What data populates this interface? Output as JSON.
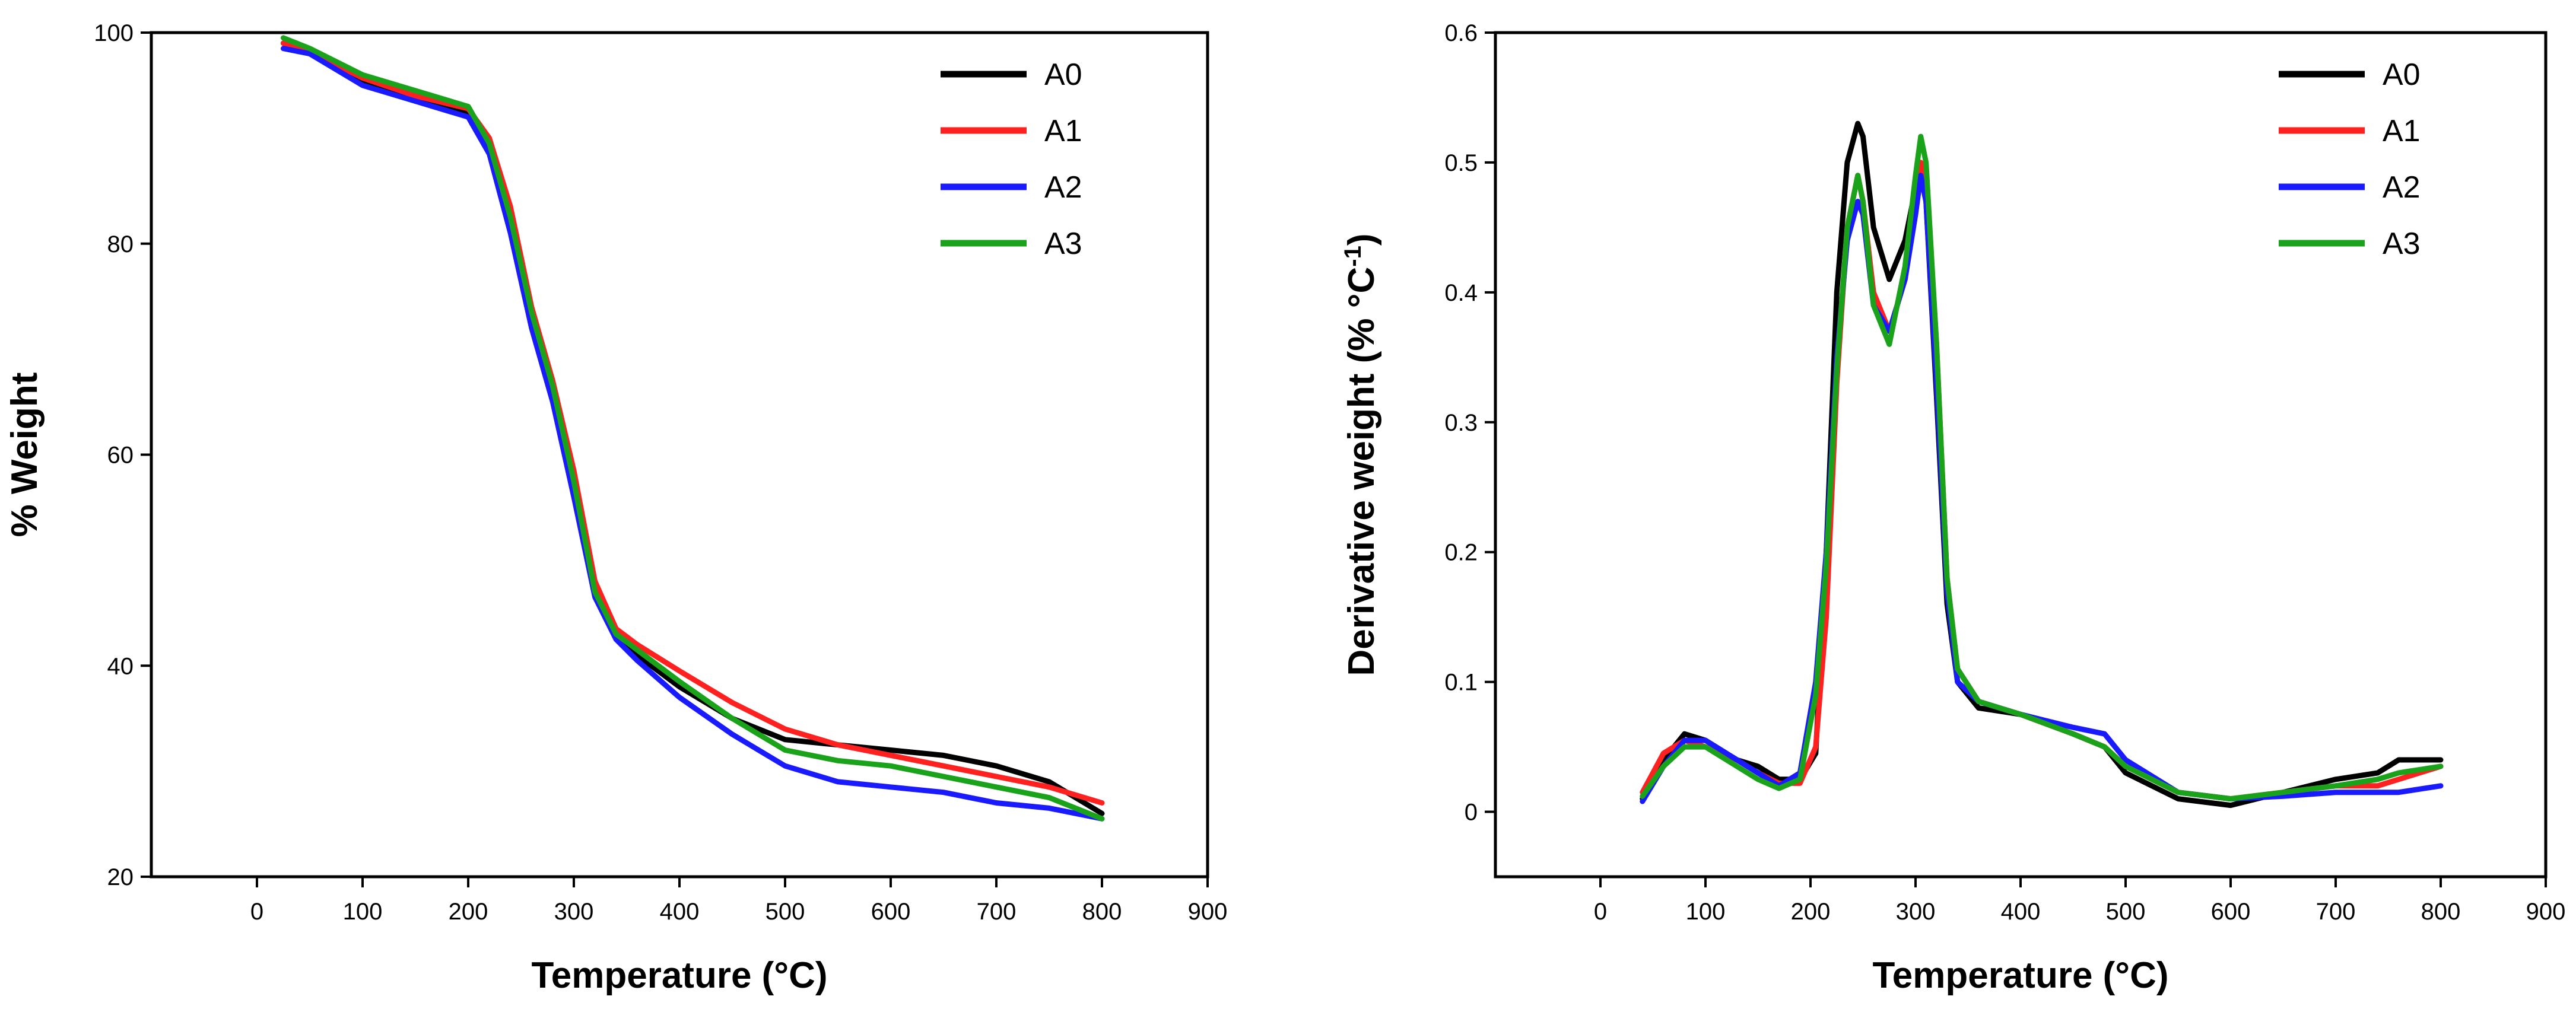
{
  "chart_data": [
    {
      "type": "line",
      "xlabel": "Temperature (°C)",
      "ylabel": "% Weight",
      "xlim": [
        -100,
        900
      ],
      "ylim": [
        20,
        100
      ],
      "xticks": [
        0,
        100,
        200,
        300,
        400,
        500,
        600,
        700,
        800,
        900
      ],
      "yticks": [
        20,
        40,
        60,
        80,
        100
      ],
      "legend": "top-right",
      "series": [
        {
          "name": "A0",
          "color": "#000000",
          "x": [
            25,
            50,
            100,
            150,
            200,
            220,
            240,
            260,
            280,
            300,
            320,
            340,
            360,
            400,
            450,
            500,
            550,
            600,
            650,
            700,
            750,
            800
          ],
          "y": [
            99,
            98,
            95.5,
            94,
            92.5,
            89,
            82,
            73,
            66,
            57,
            47,
            43,
            41,
            38,
            35,
            33,
            32.5,
            32,
            31.5,
            30.5,
            29,
            26
          ]
        },
        {
          "name": "A1",
          "color": "#ff2020",
          "x": [
            25,
            50,
            100,
            150,
            200,
            220,
            240,
            260,
            280,
            300,
            320,
            340,
            360,
            400,
            450,
            500,
            550,
            600,
            650,
            700,
            750,
            800
          ],
          "y": [
            99,
            98.2,
            95.7,
            94,
            92.8,
            90,
            83.5,
            74,
            67,
            58.5,
            48,
            43.5,
            42,
            39.5,
            36.5,
            34,
            32.5,
            31.5,
            30.5,
            29.5,
            28.5,
            27
          ]
        },
        {
          "name": "A2",
          "color": "#1a1aff",
          "x": [
            25,
            50,
            100,
            150,
            200,
            220,
            240,
            260,
            280,
            300,
            320,
            340,
            360,
            400,
            450,
            500,
            550,
            600,
            650,
            700,
            750,
            800
          ],
          "y": [
            98.5,
            98,
            95,
            93.5,
            92,
            88.5,
            81,
            72,
            65,
            56,
            46.5,
            42.5,
            40.5,
            37,
            33.5,
            30.5,
            29,
            28.5,
            28,
            27,
            26.5,
            25.5
          ]
        },
        {
          "name": "A3",
          "color": "#1aa31a",
          "x": [
            25,
            50,
            100,
            150,
            200,
            220,
            240,
            260,
            280,
            300,
            320,
            340,
            360,
            400,
            450,
            500,
            550,
            600,
            650,
            700,
            750,
            800
          ],
          "y": [
            99.5,
            98.5,
            96,
            94.5,
            93,
            89.5,
            82.5,
            73.5,
            66.5,
            57.5,
            47,
            43,
            41.5,
            38.5,
            35,
            32,
            31,
            30.5,
            29.5,
            28.5,
            27.5,
            25.5
          ]
        }
      ]
    },
    {
      "type": "line",
      "xlabel": "Temperature (°C)",
      "ylabel_main": "Derivative weight (% °C",
      "ylabel_sup": "-1",
      "ylabel_tail": ")",
      "xlim": [
        -100,
        900
      ],
      "ylim": [
        -0.05,
        0.6
      ],
      "xticks": [
        0,
        100,
        200,
        300,
        400,
        500,
        600,
        700,
        800,
        900
      ],
      "yticks": [
        0,
        0.1,
        0.2,
        0.3,
        0.4,
        0.5,
        0.6
      ],
      "legend": "top-right",
      "series": [
        {
          "name": "A0",
          "color": "#000000",
          "x": [
            40,
            60,
            80,
            100,
            130,
            150,
            170,
            190,
            205,
            215,
            225,
            235,
            245,
            250,
            260,
            275,
            290,
            300,
            305,
            310,
            320,
            330,
            340,
            360,
            400,
            450,
            480,
            500,
            550,
            600,
            650,
            700,
            740,
            760,
            800
          ],
          "y": [
            0.01,
            0.04,
            0.06,
            0.055,
            0.04,
            0.035,
            0.025,
            0.025,
            0.045,
            0.2,
            0.4,
            0.5,
            0.53,
            0.52,
            0.45,
            0.41,
            0.44,
            0.48,
            0.49,
            0.47,
            0.32,
            0.16,
            0.1,
            0.08,
            0.075,
            0.06,
            0.05,
            0.03,
            0.01,
            0.005,
            0.015,
            0.025,
            0.03,
            0.04,
            0.04
          ]
        },
        {
          "name": "A1",
          "color": "#ff2020",
          "x": [
            40,
            60,
            80,
            100,
            130,
            150,
            170,
            190,
            205,
            215,
            225,
            235,
            245,
            250,
            260,
            275,
            290,
            300,
            305,
            310,
            320,
            330,
            340,
            360,
            400,
            450,
            480,
            500,
            550,
            600,
            650,
            700,
            740,
            760,
            800
          ],
          "y": [
            0.015,
            0.045,
            0.055,
            0.05,
            0.04,
            0.03,
            0.022,
            0.022,
            0.05,
            0.15,
            0.33,
            0.45,
            0.49,
            0.47,
            0.4,
            0.37,
            0.41,
            0.47,
            0.5,
            0.49,
            0.36,
            0.18,
            0.11,
            0.085,
            0.075,
            0.06,
            0.05,
            0.035,
            0.015,
            0.01,
            0.015,
            0.02,
            0.02,
            0.025,
            0.035
          ]
        },
        {
          "name": "A2",
          "color": "#1a1aff",
          "x": [
            40,
            60,
            80,
            100,
            130,
            150,
            170,
            190,
            205,
            215,
            225,
            235,
            245,
            250,
            260,
            275,
            290,
            300,
            305,
            310,
            320,
            330,
            340,
            360,
            400,
            450,
            480,
            500,
            550,
            600,
            650,
            700,
            740,
            760,
            800
          ],
          "y": [
            0.008,
            0.035,
            0.055,
            0.055,
            0.04,
            0.03,
            0.02,
            0.03,
            0.1,
            0.2,
            0.35,
            0.44,
            0.47,
            0.46,
            0.39,
            0.37,
            0.41,
            0.46,
            0.49,
            0.47,
            0.33,
            0.17,
            0.1,
            0.085,
            0.075,
            0.065,
            0.06,
            0.04,
            0.015,
            0.01,
            0.012,
            0.015,
            0.015,
            0.015,
            0.02
          ]
        },
        {
          "name": "A3",
          "color": "#1aa31a",
          "x": [
            40,
            60,
            80,
            100,
            130,
            150,
            170,
            190,
            205,
            215,
            225,
            235,
            245,
            250,
            260,
            275,
            290,
            300,
            305,
            310,
            320,
            330,
            340,
            360,
            400,
            450,
            480,
            500,
            550,
            600,
            650,
            700,
            740,
            760,
            800
          ],
          "y": [
            0.012,
            0.035,
            0.05,
            0.05,
            0.035,
            0.025,
            0.018,
            0.025,
            0.09,
            0.19,
            0.34,
            0.45,
            0.49,
            0.47,
            0.39,
            0.36,
            0.42,
            0.49,
            0.52,
            0.5,
            0.36,
            0.18,
            0.11,
            0.085,
            0.075,
            0.06,
            0.05,
            0.035,
            0.015,
            0.01,
            0.015,
            0.02,
            0.025,
            0.03,
            0.035
          ]
        }
      ]
    }
  ]
}
